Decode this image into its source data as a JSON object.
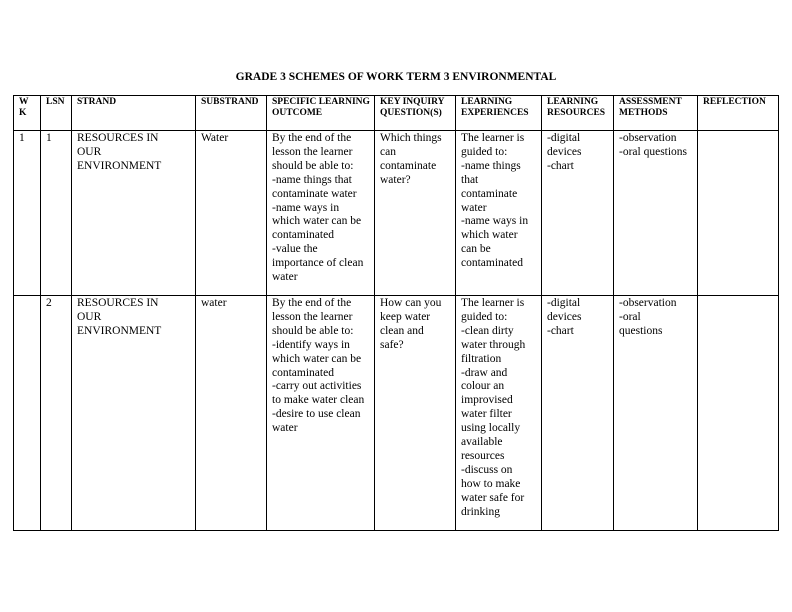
{
  "title": "GRADE 3 SCHEMES OF WORK TERM 3 ENVIRONMENTAL",
  "headers": [
    "W\nK",
    "LSN",
    "STRAND",
    "SUBSTRAND",
    "SPECIFIC LEARNING OUTCOME",
    "KEY INQUIRY QUESTION(S)",
    "LEARNING EXPERIENCES",
    "LEARNING RESOURCES",
    "ASSESSMENT METHODS",
    "REFLECTION"
  ],
  "rows": [
    [
      "1",
      "1",
      "RESOURCES IN\nOUR\nENVIRONMENT",
      "Water",
      "By the end of the\nlesson the learner\nshould be able to:\n-name things that\ncontaminate water\n-name ways in\nwhich water can be\ncontaminated\n-value the\nimportance of clean\nwater",
      "Which things\ncan\ncontaminate\nwater?",
      "The learner is\nguided to:\n-name things\nthat\ncontaminate\nwater\n -name ways in\nwhich water\ncan be\ncontaminated",
      "-digital\ndevices\n-chart",
      "-observation\n-oral questions",
      ""
    ],
    [
      "",
      "2",
      "RESOURCES IN\nOUR\nENVIRONMENT",
      "water",
      "By the end of the\nlesson the learner\nshould be able to:\n-identify  ways in\nwhich water can be\ncontaminated\n-carry out activities\nto make water clean\n-desire to use clean\nwater",
      "How can you\nkeep water\nclean and\nsafe?",
      "The learner is\nguided to:\n-clean dirty\nwater through\nfiltration\n-draw and\ncolour an\nimprovised\nwater filter\nusing locally\navailable\nresources\n-discuss on\nhow to make\nwater safe for\ndrinking",
      "-digital\ndevices\n-chart",
      "-observation\n-oral\nquestions",
      ""
    ]
  ]
}
